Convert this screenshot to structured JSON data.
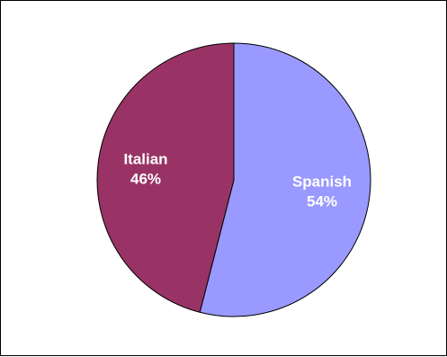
{
  "chart_data": {
    "type": "pie",
    "title": "",
    "categories": [
      "Spanish",
      "Italian"
    ],
    "values": [
      54,
      46
    ],
    "percent_labels": [
      "54%",
      "46%"
    ],
    "colors": [
      "#9999ff",
      "#993366"
    ],
    "legend": "none",
    "start_angle": "12 o'clock",
    "direction": "clockwise"
  }
}
